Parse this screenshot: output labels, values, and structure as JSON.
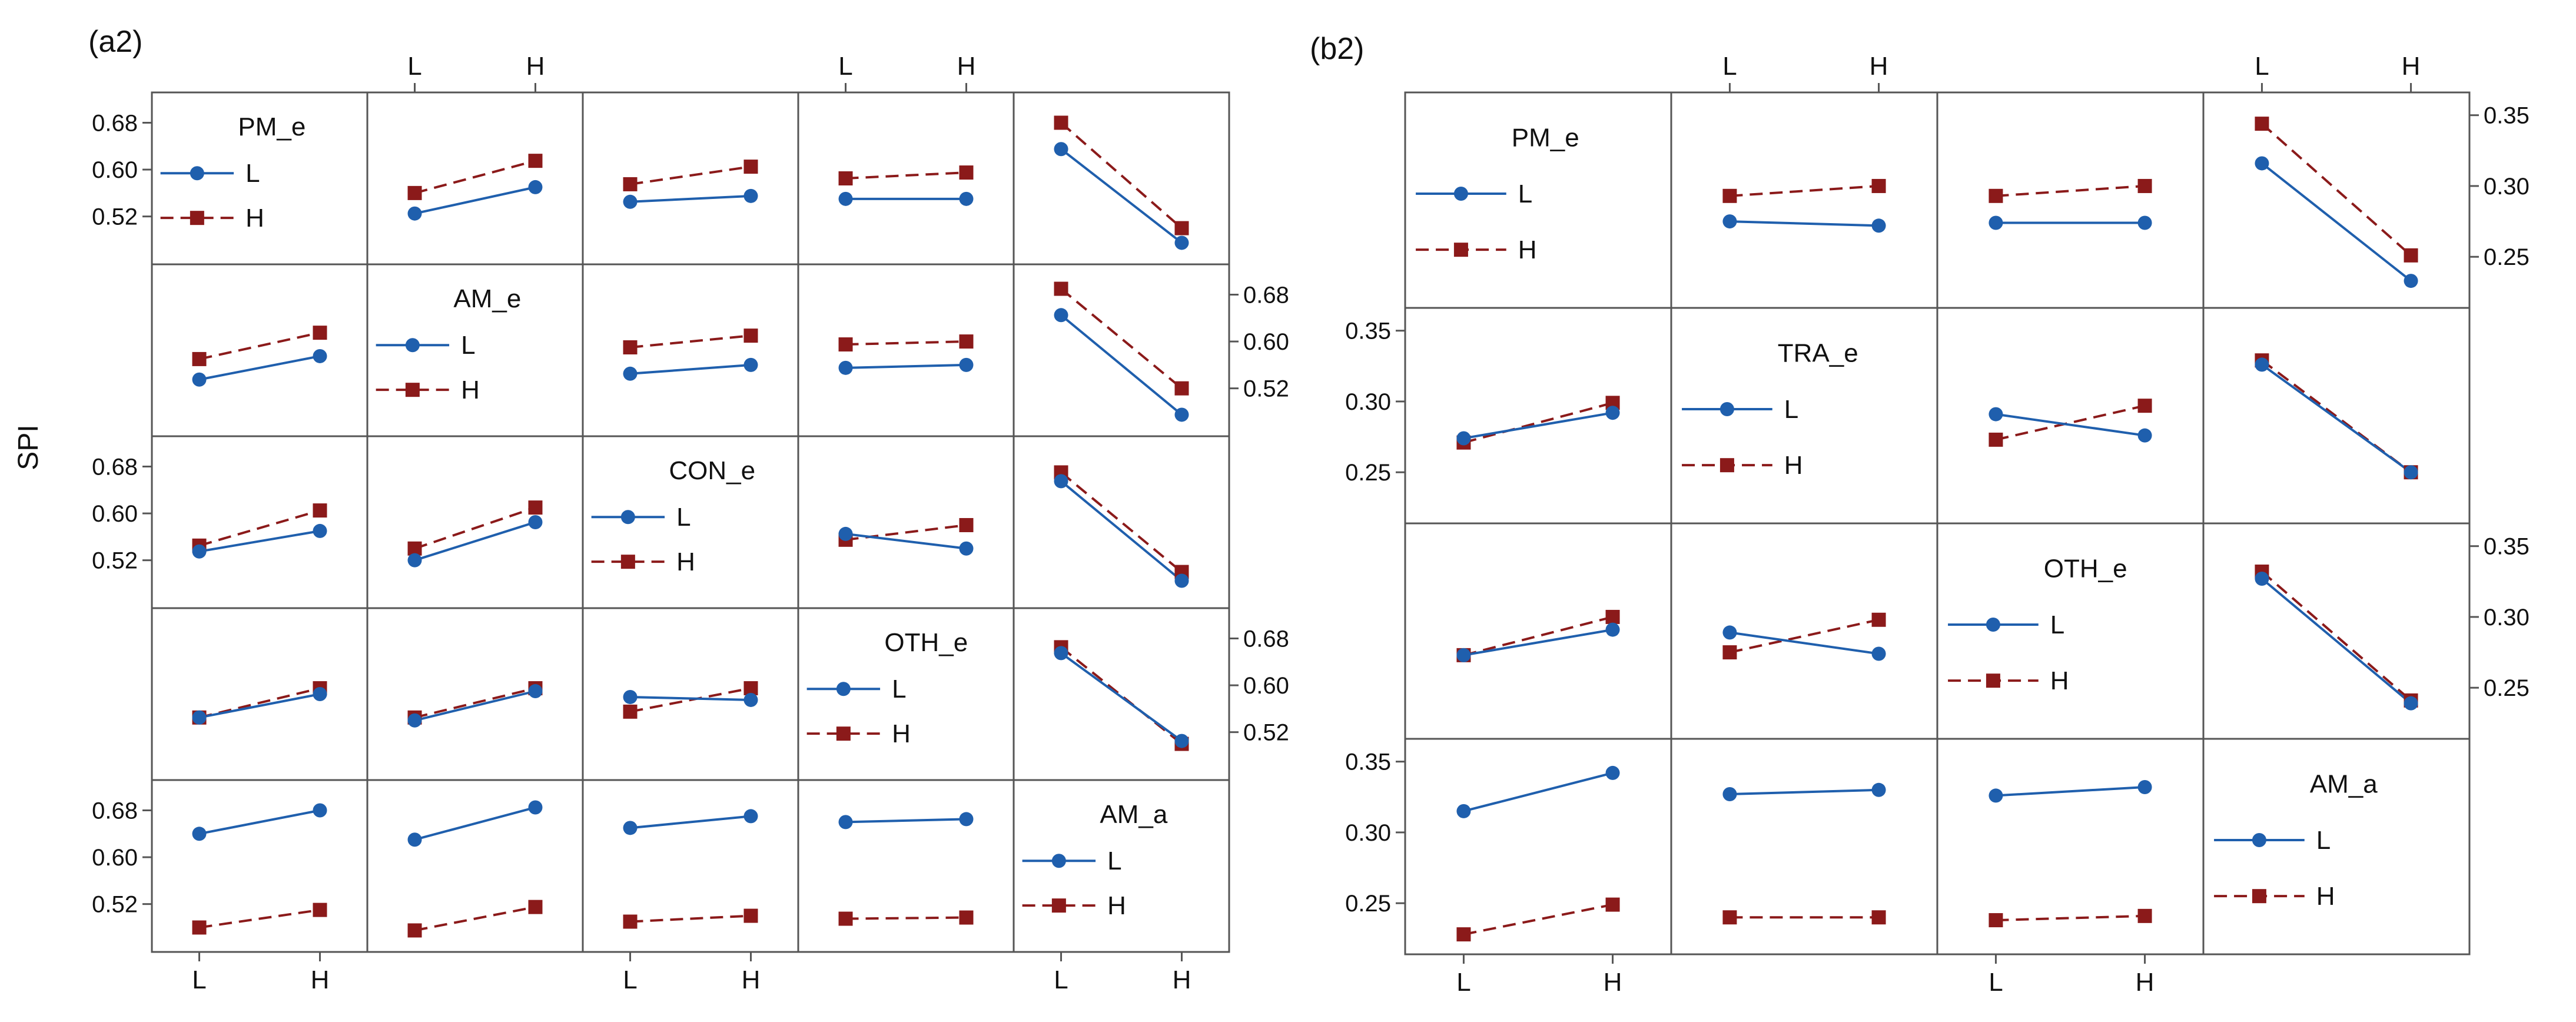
{
  "figure": {
    "ylabel": "SPI",
    "legend_marker_levels": [
      "L",
      "H"
    ]
  },
  "colors": {
    "level_L": "#1f5fad",
    "level_H": "#8b1a1a",
    "frame": "#555555",
    "text": "#111111"
  },
  "chart_data": [
    {
      "type": "line",
      "title": "(a2)",
      "chart": "interaction plot matrix",
      "ylabel": "SPI",
      "factors": [
        "PM_e",
        "AM_e",
        "CON_e",
        "OTH_e",
        "AM_a"
      ],
      "levels": [
        "L",
        "H"
      ],
      "ylim": [
        0.45,
        0.72
      ],
      "yticks": [
        0.52,
        0.6,
        0.68
      ],
      "ytick_labels": [
        "0.52",
        "0.60",
        "0.68"
      ],
      "top_level_cols": [
        1,
        3
      ],
      "bottom_level_cols": [
        0,
        2,
        4
      ],
      "left_tick_rows": [
        0,
        2,
        4
      ],
      "right_tick_rows": [
        1,
        3
      ],
      "cells": [
        {
          "row": 0,
          "col": 1,
          "L": [
            0.525,
            0.57
          ],
          "H": [
            0.56,
            0.615
          ]
        },
        {
          "row": 0,
          "col": 2,
          "L": [
            0.545,
            0.555
          ],
          "H": [
            0.575,
            0.605
          ]
        },
        {
          "row": 0,
          "col": 3,
          "L": [
            0.55,
            0.55
          ],
          "H": [
            0.585,
            0.595
          ]
        },
        {
          "row": 0,
          "col": 4,
          "L": [
            0.635,
            0.475
          ],
          "H": [
            0.68,
            0.5
          ]
        },
        {
          "row": 1,
          "col": 0,
          "L": [
            0.535,
            0.575
          ],
          "H": [
            0.57,
            0.615
          ]
        },
        {
          "row": 1,
          "col": 2,
          "L": [
            0.545,
            0.56
          ],
          "H": [
            0.59,
            0.61
          ]
        },
        {
          "row": 1,
          "col": 3,
          "L": [
            0.555,
            0.56
          ],
          "H": [
            0.595,
            0.6
          ]
        },
        {
          "row": 1,
          "col": 4,
          "L": [
            0.645,
            0.475
          ],
          "H": [
            0.69,
            0.52
          ]
        },
        {
          "row": 2,
          "col": 0,
          "L": [
            0.535,
            0.57
          ],
          "H": [
            0.545,
            0.605
          ]
        },
        {
          "row": 2,
          "col": 1,
          "L": [
            0.52,
            0.585
          ],
          "H": [
            0.54,
            0.61
          ]
        },
        {
          "row": 2,
          "col": 3,
          "L": [
            0.565,
            0.54
          ],
          "H": [
            0.555,
            0.58
          ]
        },
        {
          "row": 2,
          "col": 4,
          "L": [
            0.655,
            0.485
          ],
          "H": [
            0.67,
            0.5
          ]
        },
        {
          "row": 3,
          "col": 0,
          "L": [
            0.545,
            0.585
          ],
          "H": [
            0.545,
            0.595
          ]
        },
        {
          "row": 3,
          "col": 1,
          "L": [
            0.54,
            0.59
          ],
          "H": [
            0.545,
            0.595
          ]
        },
        {
          "row": 3,
          "col": 2,
          "L": [
            0.58,
            0.575
          ],
          "H": [
            0.555,
            0.595
          ]
        },
        {
          "row": 3,
          "col": 4,
          "L": [
            0.655,
            0.505
          ],
          "H": [
            0.665,
            0.5
          ]
        },
        {
          "row": 4,
          "col": 0,
          "L": [
            0.64,
            0.68
          ],
          "H": [
            0.48,
            0.51
          ]
        },
        {
          "row": 4,
          "col": 1,
          "L": [
            0.63,
            0.685
          ],
          "H": [
            0.475,
            0.515
          ]
        },
        {
          "row": 4,
          "col": 2,
          "L": [
            0.65,
            0.67
          ],
          "H": [
            0.49,
            0.5
          ]
        },
        {
          "row": 4,
          "col": 3,
          "L": [
            0.66,
            0.665
          ],
          "H": [
            0.495,
            0.497
          ]
        }
      ],
      "legends": [
        {
          "row": 0,
          "col": 0,
          "factor": "PM_e",
          "labels": [
            "L",
            "H"
          ]
        },
        {
          "row": 1,
          "col": 1,
          "factor": "AM_e",
          "labels": [
            "L",
            "H"
          ]
        },
        {
          "row": 2,
          "col": 2,
          "factor": "CON_e",
          "labels": [
            "L",
            "H"
          ]
        },
        {
          "row": 3,
          "col": 3,
          "factor": "OTH_e",
          "labels": [
            "L",
            "H"
          ]
        },
        {
          "row": 4,
          "col": 4,
          "factor": "AM_a",
          "labels": [
            "L",
            "H"
          ]
        }
      ]
    },
    {
      "type": "line",
      "title": "(b2)",
      "chart": "interaction plot matrix",
      "factors": [
        "PM_e",
        "TRA_e",
        "OTH_e",
        "AM_a"
      ],
      "levels": [
        "L",
        "H"
      ],
      "ylim": [
        0.22,
        0.36
      ],
      "yticks": [
        0.25,
        0.3,
        0.35
      ],
      "ytick_labels": [
        "0.25",
        "0.30",
        "0.35"
      ],
      "top_level_cols": [
        1,
        3
      ],
      "bottom_level_cols": [
        0,
        2
      ],
      "left_tick_rows": [
        1,
        3
      ],
      "right_tick_rows": [
        0,
        2
      ],
      "cells": [
        {
          "row": 0,
          "col": 1,
          "L": [
            0.275,
            0.272
          ],
          "H": [
            0.293,
            0.3
          ]
        },
        {
          "row": 0,
          "col": 2,
          "L": [
            0.274,
            0.274
          ],
          "H": [
            0.293,
            0.3
          ]
        },
        {
          "row": 0,
          "col": 3,
          "L": [
            0.316,
            0.233
          ],
          "H": [
            0.344,
            0.251
          ]
        },
        {
          "row": 1,
          "col": 0,
          "L": [
            0.274,
            0.292
          ],
          "H": [
            0.271,
            0.299
          ]
        },
        {
          "row": 1,
          "col": 2,
          "L": [
            0.291,
            0.276
          ],
          "H": [
            0.273,
            0.297
          ]
        },
        {
          "row": 1,
          "col": 3,
          "L": [
            0.326,
            0.25
          ],
          "H": [
            0.329,
            0.25
          ]
        },
        {
          "row": 2,
          "col": 0,
          "L": [
            0.273,
            0.291
          ],
          "H": [
            0.273,
            0.3
          ]
        },
        {
          "row": 2,
          "col": 1,
          "L": [
            0.289,
            0.274
          ],
          "H": [
            0.275,
            0.298
          ]
        },
        {
          "row": 2,
          "col": 3,
          "L": [
            0.327,
            0.239
          ],
          "H": [
            0.332,
            0.241
          ]
        },
        {
          "row": 3,
          "col": 0,
          "L": [
            0.315,
            0.342
          ],
          "H": [
            0.228,
            0.249
          ]
        },
        {
          "row": 3,
          "col": 1,
          "L": [
            0.327,
            0.33
          ],
          "H": [
            0.24,
            0.24
          ]
        },
        {
          "row": 3,
          "col": 2,
          "L": [
            0.326,
            0.332
          ],
          "H": [
            0.238,
            0.241
          ]
        }
      ],
      "legends": [
        {
          "row": 0,
          "col": 0,
          "factor": "PM_e",
          "labels": [
            "L",
            "H"
          ]
        },
        {
          "row": 1,
          "col": 1,
          "factor": "TRA_e",
          "labels": [
            "L",
            "H"
          ]
        },
        {
          "row": 2,
          "col": 2,
          "factor": "OTH_e",
          "labels": [
            "L",
            "H"
          ]
        },
        {
          "row": 3,
          "col": 3,
          "factor": "AM_a",
          "labels": [
            "L",
            "H"
          ]
        }
      ]
    }
  ]
}
